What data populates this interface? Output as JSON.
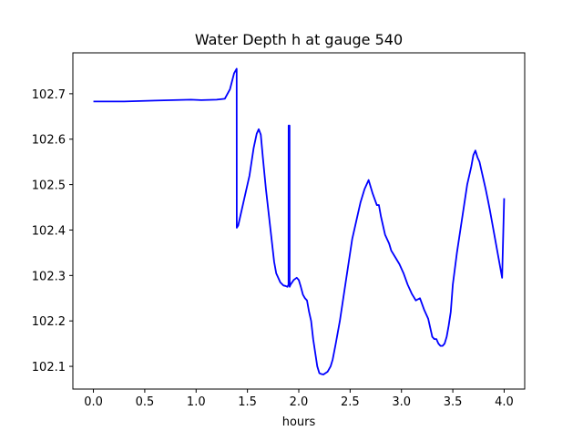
{
  "chart_data": {
    "type": "line",
    "title": "Water Depth h at gauge 540",
    "xlabel": "hours",
    "ylabel": "",
    "xlim": [
      -0.2,
      4.2
    ],
    "ylim": [
      102.05,
      102.79
    ],
    "xticks": [
      0.0,
      0.5,
      1.0,
      1.5,
      2.0,
      2.5,
      3.0,
      3.5,
      4.0
    ],
    "xtick_labels": [
      "0.0",
      "0.5",
      "1.0",
      "1.5",
      "2.0",
      "2.5",
      "3.0",
      "3.5",
      "4.0"
    ],
    "yticks": [
      102.1,
      102.2,
      102.3,
      102.4,
      102.5,
      102.6,
      102.7
    ],
    "ytick_labels": [
      "102.1",
      "102.2",
      "102.3",
      "102.4",
      "102.5",
      "102.6",
      "102.7"
    ],
    "grid": false,
    "series": [
      {
        "color": "#0000ff",
        "x": [
          0.0,
          0.1,
          0.3,
          0.6,
          0.95,
          1.05,
          1.2,
          1.28,
          1.33,
          1.37,
          1.395,
          1.396,
          1.41,
          1.43,
          1.47,
          1.52,
          1.56,
          1.59,
          1.61,
          1.63,
          1.65,
          1.68,
          1.72,
          1.76,
          1.78,
          1.8,
          1.82,
          1.85,
          1.87,
          1.89,
          1.9,
          1.901,
          1.91,
          1.911,
          1.92,
          1.95,
          1.98,
          2.0,
          2.02,
          2.04,
          2.06,
          2.08,
          2.1,
          2.12,
          2.14,
          2.16,
          2.18,
          2.2,
          2.22,
          2.24,
          2.28,
          2.31,
          2.33,
          2.36,
          2.4,
          2.44,
          2.48,
          2.52,
          2.56,
          2.6,
          2.64,
          2.68,
          2.72,
          2.76,
          2.78,
          2.8,
          2.82,
          2.84,
          2.86,
          2.88,
          2.9,
          2.94,
          2.98,
          3.02,
          3.06,
          3.1,
          3.14,
          3.18,
          3.22,
          3.26,
          3.28,
          3.3,
          3.32,
          3.34,
          3.36,
          3.38,
          3.4,
          3.42,
          3.44,
          3.46,
          3.48,
          3.5,
          3.54,
          3.58,
          3.62,
          3.64,
          3.66,
          3.68,
          3.7,
          3.72,
          3.74,
          3.76,
          3.78,
          3.8,
          3.82,
          3.84,
          3.86,
          3.88,
          3.9,
          3.92,
          3.94,
          3.96,
          3.98,
          4.0
        ],
        "y": [
          102.683,
          102.683,
          102.683,
          102.685,
          102.687,
          102.686,
          102.687,
          102.689,
          102.71,
          102.745,
          102.755,
          102.405,
          102.41,
          102.43,
          102.47,
          102.52,
          102.58,
          102.612,
          102.622,
          102.61,
          102.56,
          102.49,
          102.41,
          102.33,
          102.305,
          102.295,
          102.285,
          102.278,
          102.277,
          102.275,
          102.28,
          102.63,
          102.63,
          102.275,
          102.28,
          102.29,
          102.295,
          102.29,
          102.275,
          102.258,
          102.25,
          102.245,
          102.22,
          102.2,
          102.16,
          102.13,
          102.1,
          102.085,
          102.083,
          102.082,
          102.088,
          102.1,
          102.115,
          102.15,
          102.2,
          102.26,
          102.32,
          102.38,
          102.42,
          102.46,
          102.49,
          102.51,
          102.48,
          102.455,
          102.455,
          102.43,
          102.41,
          102.39,
          102.38,
          102.37,
          102.355,
          102.34,
          102.325,
          102.305,
          102.28,
          102.26,
          102.245,
          102.25,
          102.225,
          102.205,
          102.185,
          102.165,
          102.16,
          102.16,
          102.15,
          102.145,
          102.145,
          102.15,
          102.165,
          102.19,
          102.22,
          102.28,
          102.35,
          102.41,
          102.47,
          102.5,
          102.52,
          102.54,
          102.565,
          102.575,
          102.56,
          102.55,
          102.53,
          102.51,
          102.49,
          102.468,
          102.445,
          102.42,
          102.395,
          102.37,
          102.345,
          102.32,
          102.295,
          102.47
        ]
      }
    ]
  }
}
